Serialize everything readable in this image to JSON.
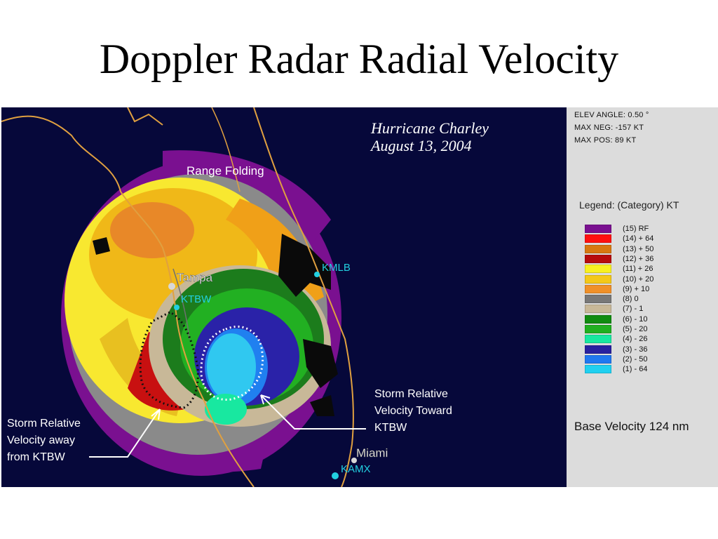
{
  "title": "Doppler Radar Radial Velocity",
  "map": {
    "storm_name": "Hurricane Charley",
    "storm_date": "August 13, 2004",
    "range_folding_label": "Range Folding",
    "cities": {
      "tampa": "Tampa",
      "ktbw": "KTBW",
      "kmlb": "KMLB",
      "miami": "Miami",
      "kamx": "KAMX"
    },
    "annotations": {
      "away": [
        "Storm Relative",
        "Velocity away",
        "from KTBW"
      ],
      "toward": [
        "Storm Relative",
        "Velocity Toward",
        "KTBW"
      ]
    },
    "colors": {
      "background": "#06083a",
      "coast": "#e0a040",
      "station": "#22d0e0",
      "rf": "#7a1090"
    }
  },
  "info": {
    "elev_angle": "ELEV ANGLE: 0.50 °",
    "max_neg": "MAX NEG: -157 KT",
    "max_pos": "MAX POS: 89 KT"
  },
  "legend": {
    "title": "Legend: (Category) KT",
    "items": [
      {
        "label": "(15) RF",
        "color": "#7a1090"
      },
      {
        "label": "(14) + 64",
        "color": "#ff1010"
      },
      {
        "label": "(13) + 50",
        "color": "#d87810"
      },
      {
        "label": "(12) + 36",
        "color": "#b80c0c"
      },
      {
        "label": "(11) + 26",
        "color": "#f8f020"
      },
      {
        "label": "(10) + 20",
        "color": "#f4c818"
      },
      {
        "label": "(9) + 10",
        "color": "#f09028"
      },
      {
        "label": "(8) 0",
        "color": "#787878"
      },
      {
        "label": "(7) - 1",
        "color": "#c8b898"
      },
      {
        "label": "(6) - 10",
        "color": "#108c10"
      },
      {
        "label": "(5) - 20",
        "color": "#20b020"
      },
      {
        "label": "(4) - 26",
        "color": "#18e8a0"
      },
      {
        "label": "(3) - 36",
        "color": "#2820a0"
      },
      {
        "label": "(2) - 50",
        "color": "#2078f0"
      },
      {
        "label": "(1) - 64",
        "color": "#20d0f0"
      }
    ],
    "base_velocity": "Base Velocity 124 nm"
  }
}
